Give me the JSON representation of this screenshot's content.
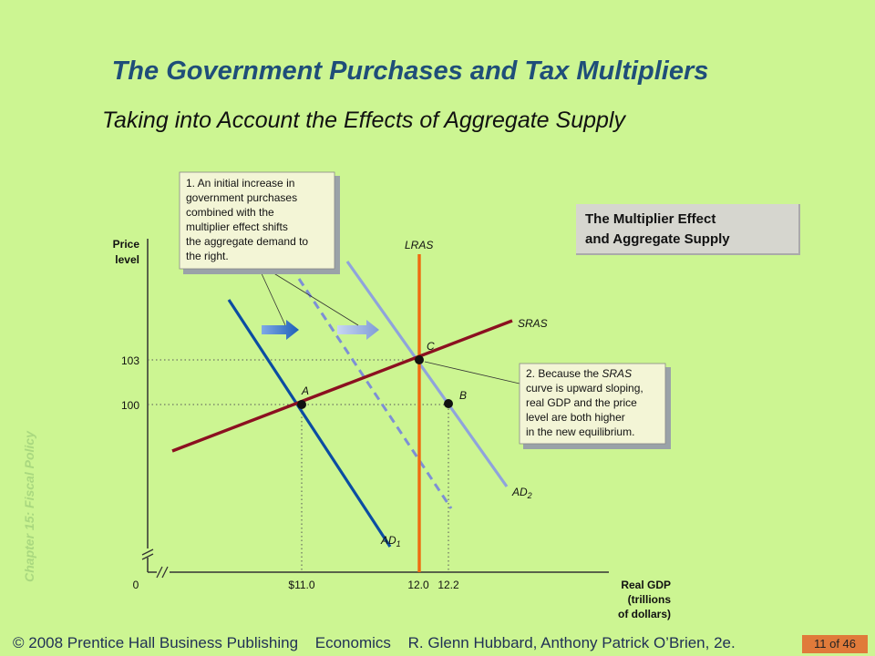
{
  "slide": {
    "title": "The Government Purchases and Tax Multipliers",
    "subtitle": "Taking into Account the Effects of Aggregate Supply",
    "side_label": "Chapter 15: Fiscal Policy",
    "legend_box_line1": "The Multiplier Effect",
    "legend_box_line2": "and Aggregate Supply",
    "footer_copyright": "© 2008 Prentice Hall Business Publishing",
    "footer_book": "Economics",
    "footer_authors": "R. Glenn Hubbard, Anthony Patrick O’Brien, 2e.",
    "page_indicator": "11 of 46"
  },
  "diagram": {
    "y_axis_label_line1": "Price",
    "y_axis_label_line2": "level",
    "x_axis_label_line1": "Real GDP",
    "x_axis_label_line2": "(trillions",
    "x_axis_label_line3": "of dollars)",
    "origin_label": "0",
    "y_ticks": [
      "103",
      "100"
    ],
    "x_ticks": [
      "$11.0",
      "12.0",
      "12.2"
    ],
    "curve_labels": {
      "lras": "LRAS",
      "sras": "SRAS",
      "ad1": "AD",
      "ad1_sub": "1",
      "ad2": "AD",
      "ad2_sub": "2"
    },
    "point_labels": [
      "A",
      "B",
      "C"
    ],
    "note1_lines": [
      "1. An initial increase in",
      "government purchases",
      "combined with the",
      "multiplier effect shifts",
      "the aggregate demand to",
      "the right."
    ],
    "note2_line1_prefix": "2. Because the ",
    "note2_line1_italic": "SRAS",
    "note2_rest_lines": [
      "curve is upward sloping,",
      "real GDP and the price",
      "level are both higher",
      "in the new equilibrium."
    ],
    "colors": {
      "ad1": "#0b4da2",
      "ad2": "#8fa3dc",
      "shift_dashed": "#7d8fd6",
      "sras": "#8b1020",
      "lras": "#ef6a10",
      "note_bg": "#f3f5d6",
      "background": "#ccf592"
    }
  }
}
